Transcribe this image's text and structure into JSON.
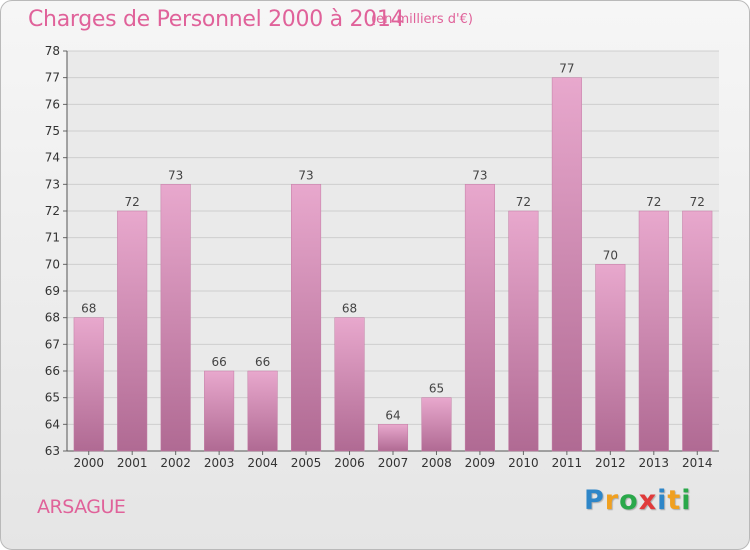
{
  "header": {
    "title": "Charges de Personnel 2000 à 2014",
    "subtitle": "(en milliers d'€)"
  },
  "footer": {
    "place": "ARSAGUE",
    "logo": {
      "text": "Proxiti",
      "letters": [
        {
          "ch": "P",
          "color": "#2e86c8"
        },
        {
          "ch": "r",
          "color": "#f0a020"
        },
        {
          "ch": "o",
          "color": "#2aa84a"
        },
        {
          "ch": "x",
          "color": "#e03a3a"
        },
        {
          "ch": "i",
          "color": "#2e86c8"
        },
        {
          "ch": "t",
          "color": "#f0a020"
        },
        {
          "ch": "i",
          "color": "#2aa84a"
        }
      ]
    }
  },
  "chart_data": {
    "type": "bar",
    "title": "Charges de Personnel 2000 à 2014",
    "subtitle": "(en milliers d'€)",
    "categories": [
      "2000",
      "2001",
      "2002",
      "2003",
      "2004",
      "2005",
      "2006",
      "2007",
      "2008",
      "2009",
      "2010",
      "2011",
      "2012",
      "2013",
      "2014"
    ],
    "values": [
      68,
      72,
      73,
      66,
      66,
      73,
      68,
      64,
      65,
      73,
      72,
      77,
      70,
      72,
      72
    ],
    "ylim": [
      63,
      78
    ],
    "yticks": [
      63,
      64,
      65,
      66,
      67,
      68,
      69,
      70,
      71,
      72,
      73,
      74,
      75,
      76,
      77,
      78
    ],
    "grid": true,
    "data_labels": true,
    "colors": {
      "bar_top": "#e8a8cd",
      "bar_bottom": "#b06a93",
      "grid": "#cfcfcf",
      "plot_bg": "#eaeaea"
    }
  }
}
